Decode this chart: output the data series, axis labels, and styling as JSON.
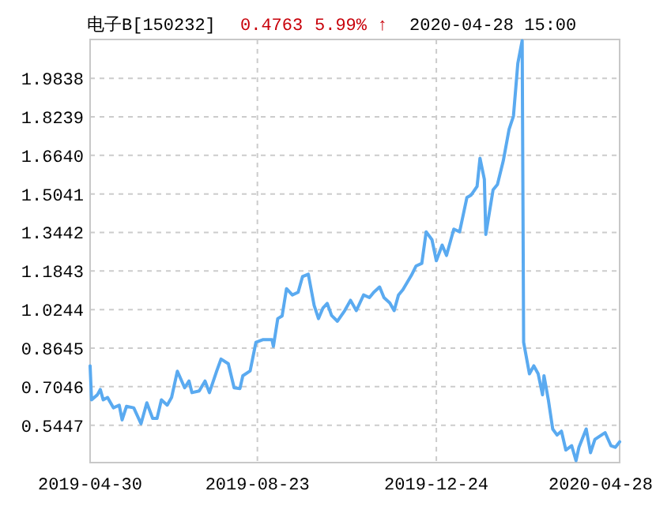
{
  "chart_data": {
    "type": "line",
    "title": "电子B[150232]",
    "annotations": [
      "0.4763",
      "5.99% ↑",
      "2020-04-28 15:00"
    ],
    "x": [
      "2019-04-30",
      "2019-05-01",
      "2019-05-05",
      "2019-05-07",
      "2019-05-09",
      "2019-05-12",
      "2019-05-16",
      "2019-05-20",
      "2019-05-22",
      "2019-05-25",
      "2019-05-30",
      "2019-06-04",
      "2019-06-08",
      "2019-06-12",
      "2019-06-15",
      "2019-06-18",
      "2019-06-22",
      "2019-06-25",
      "2019-06-29",
      "2019-07-04",
      "2019-07-07",
      "2019-07-09",
      "2019-07-14",
      "2019-07-18",
      "2019-07-21",
      "2019-07-26",
      "2019-07-29",
      "2019-08-03",
      "2019-08-07",
      "2019-08-11",
      "2019-08-13",
      "2019-08-18",
      "2019-08-22",
      "2019-08-27",
      "2019-09-02",
      "2019-09-03",
      "2019-09-06",
      "2019-09-09",
      "2019-09-12",
      "2019-09-16",
      "2019-09-20",
      "2019-09-23",
      "2019-09-27",
      "2019-10-01",
      "2019-10-04",
      "2019-10-07",
      "2019-10-10",
      "2019-10-13",
      "2019-10-17",
      "2019-10-22",
      "2019-10-26",
      "2019-10-30",
      "2019-11-04",
      "2019-11-08",
      "2019-11-11",
      "2019-11-15",
      "2019-11-18",
      "2019-11-22",
      "2019-11-25",
      "2019-11-28",
      "2019-12-01",
      "2019-12-07",
      "2019-12-10",
      "2019-12-14",
      "2019-12-17",
      "2019-12-21",
      "2019-12-24",
      "2019-12-28",
      "2019-12-31",
      "2020-01-05",
      "2020-01-09",
      "2020-01-14",
      "2020-01-17",
      "2020-01-21",
      "2020-01-23",
      "2020-01-26",
      "2020-01-27",
      "2020-02-01",
      "2020-02-04",
      "2020-02-08",
      "2020-02-12",
      "2020-02-15",
      "2020-02-18",
      "2020-02-21",
      "2020-02-22",
      "2020-02-26",
      "2020-02-29",
      "2020-03-03",
      "2020-03-06",
      "2020-03-07",
      "2020-03-10",
      "2020-03-13",
      "2020-03-16",
      "2020-03-19",
      "2020-03-22",
      "2020-03-26",
      "2020-03-29",
      "2020-03-31",
      "2020-04-05",
      "2020-04-08",
      "2020-04-11",
      "2020-04-18",
      "2020-04-22",
      "2020-04-25",
      "2020-04-28"
    ],
    "series": [
      {
        "color": "#5aaaf0",
        "values": [
          0.791,
          0.65,
          0.671,
          0.693,
          0.65,
          0.66,
          0.617,
          0.628,
          0.567,
          0.623,
          0.617,
          0.551,
          0.638,
          0.573,
          0.573,
          0.65,
          0.628,
          0.66,
          0.769,
          0.7,
          0.728,
          0.68,
          0.687,
          0.728,
          0.68,
          0.769,
          0.819,
          0.8,
          0.7,
          0.697,
          0.75,
          0.77,
          0.889,
          0.9,
          0.9,
          0.872,
          0.987,
          0.998,
          1.111,
          1.085,
          1.096,
          1.161,
          1.171,
          1.042,
          0.987,
          1.03,
          1.05,
          1.0,
          0.976,
          1.02,
          1.063,
          1.02,
          1.085,
          1.074,
          1.096,
          1.118,
          1.074,
          1.052,
          1.02,
          1.085,
          1.107,
          1.168,
          1.205,
          1.216,
          1.347,
          1.314,
          1.227,
          1.292,
          1.249,
          1.358,
          1.347,
          1.489,
          1.5,
          1.535,
          1.652,
          1.565,
          1.336,
          1.521,
          1.543,
          1.641,
          1.772,
          1.827,
          2.045,
          2.14,
          0.889,
          0.758,
          0.791,
          0.758,
          0.671,
          0.75,
          0.65,
          0.529,
          0.504,
          0.52,
          0.442,
          0.46,
          0.398,
          0.453,
          0.529,
          0.431,
          0.486,
          0.514,
          0.46,
          0.453,
          0.476
        ]
      }
    ],
    "xlim": [
      "2019-04-30",
      "2020-04-28"
    ],
    "xticks": [
      "2019-04-30",
      "2019-08-23",
      "2019-12-24",
      "2020-04-28"
    ],
    "ylim": [
      0.3898,
      2.1447
    ],
    "yticks": [
      0.5447,
      0.7046,
      0.8645,
      1.0244,
      1.1843,
      1.3442,
      1.5041,
      {
        "value": 1.664,
        "label": "1.6640"
      },
      1.8239,
      1.9838
    ],
    "grid": true,
    "marker": "none",
    "line_style": "solid"
  }
}
